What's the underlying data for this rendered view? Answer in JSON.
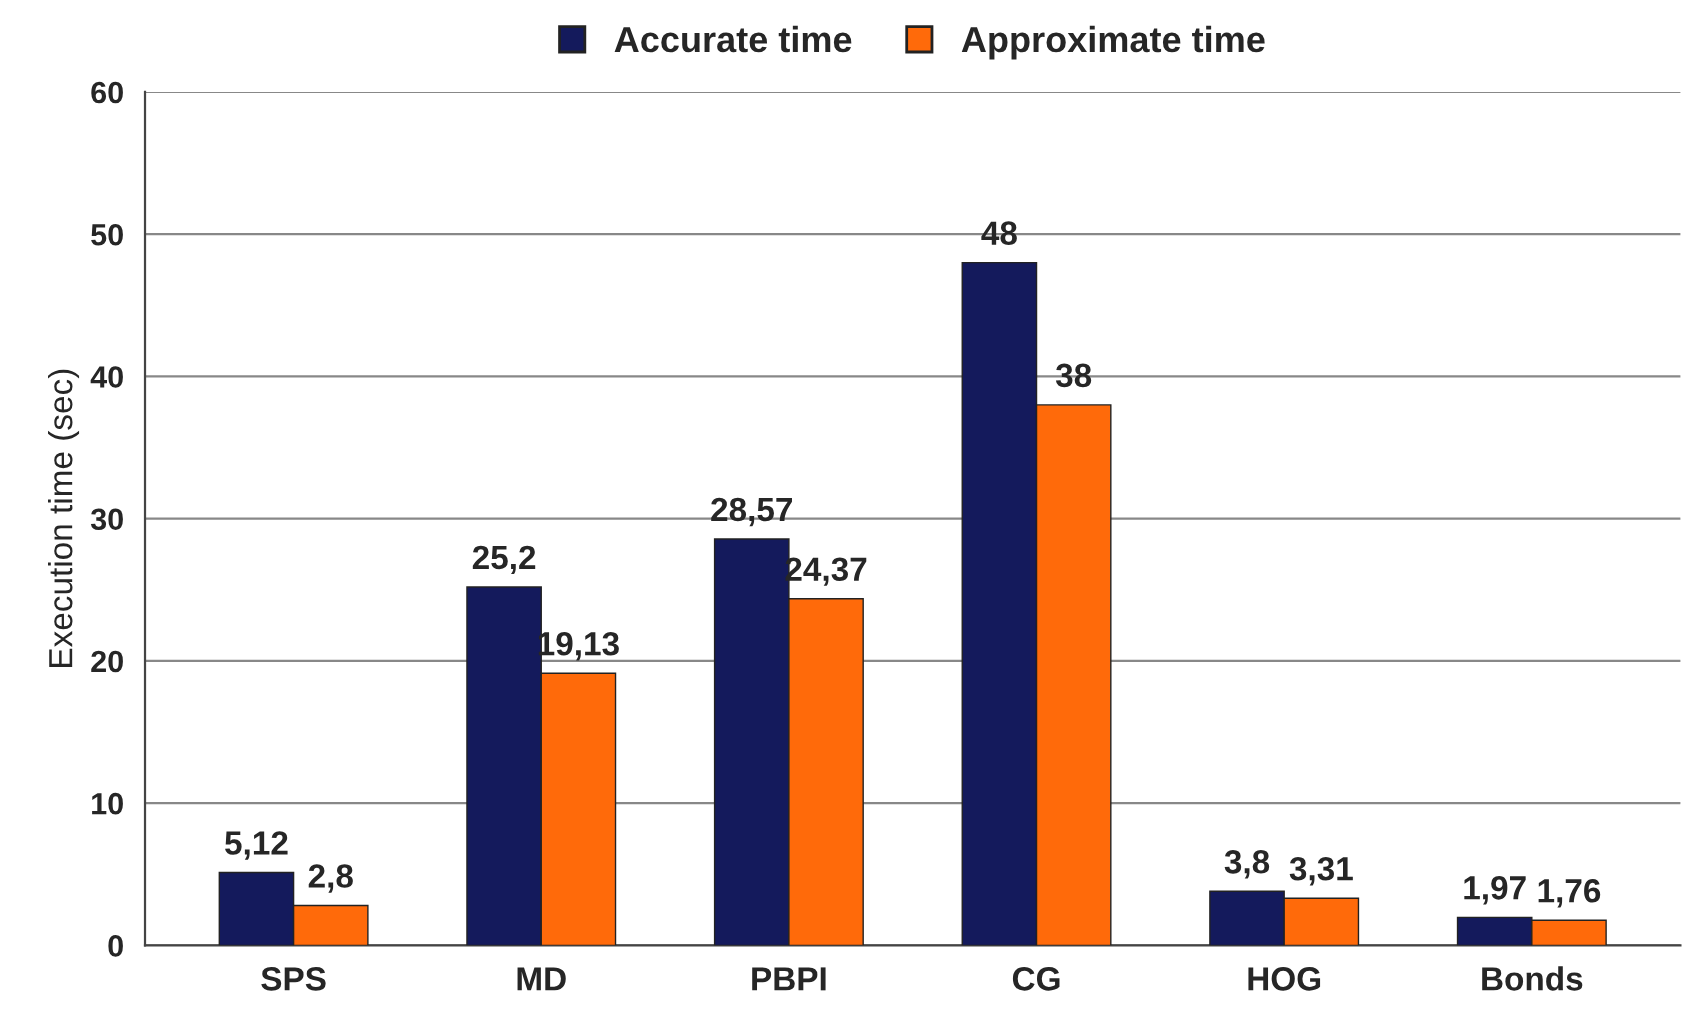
{
  "chart_data": {
    "type": "bar",
    "ylabel": "Execution time (sec)",
    "categories": [
      "SPS",
      "MD",
      "PBPI",
      "CG",
      "HOG",
      "Bonds"
    ],
    "series": [
      {
        "name": "Accurate time",
        "color": "#141a5c",
        "values": [
          5.12,
          25.2,
          28.57,
          48,
          3.8,
          1.97
        ],
        "value_labels": [
          "5,12",
          "25,2",
          "28,57",
          "48",
          "3,8",
          "1,97"
        ]
      },
      {
        "name": "Approximate time",
        "color": "#ff6a0a",
        "values": [
          2.8,
          19.13,
          24.37,
          38,
          3.31,
          1.76
        ],
        "value_labels": [
          "2,8",
          "19,13",
          "24,37",
          "38",
          "3,31",
          "1,76"
        ]
      }
    ],
    "ylim": [
      0,
      60
    ],
    "yticks": [
      0,
      10,
      20,
      30,
      40,
      50,
      60
    ],
    "grid": "y",
    "legend": "top"
  }
}
